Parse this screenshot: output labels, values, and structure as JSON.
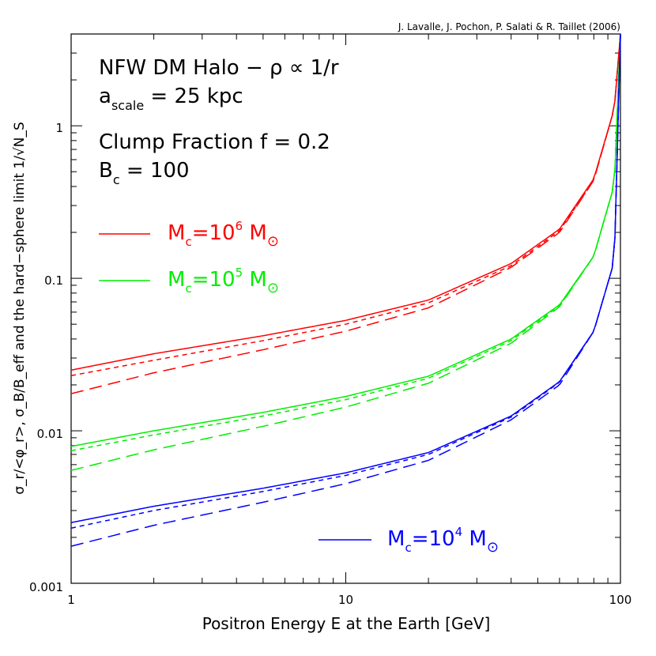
{
  "credit": "J. Lavalle, J. Pochon, P. Salati & R. Taillet (2006)",
  "annotations": {
    "line1": "NFW DM Halo − ρ ∝ 1/r",
    "line2_main": "a",
    "line2_sub": "scale",
    "line2_rest": " = 25 kpc",
    "line3": "Clump Fraction f = 0.2",
    "line4_main": "B",
    "line4_sub": "c",
    "line4_rest": " = 100"
  },
  "xaxis": {
    "label": "Positron Energy E at the Earth  [GeV]",
    "ticks": [
      "1",
      "10",
      "100"
    ]
  },
  "yaxis": {
    "label": "σ_r/<φ_r>, σ_B/B_eff and the hard−sphere limit 1/√N_S",
    "ticks": [
      "0.001",
      "0.01",
      "0.1",
      "1"
    ]
  },
  "chart_data": {
    "type": "line",
    "xscale": "log",
    "yscale": "log",
    "xlim": [
      1,
      100
    ],
    "ylim": [
      0.001,
      4
    ],
    "xlabel": "Positron Energy E at the Earth  [GeV]",
    "ylabel": "σ_r/<φ_r>, σ_B/B_eff and the hard−sphere limit 1/√N_S",
    "x": [
      1,
      2,
      5,
      10,
      20,
      40,
      60,
      80,
      95,
      100
    ],
    "series": [
      {
        "name": "M_c=10^6 M_⊙",
        "group": "1e6",
        "style": "solid",
        "color": "#ff0000",
        "values": [
          0.025,
          0.032,
          0.042,
          0.053,
          0.072,
          0.125,
          0.21,
          0.45,
          1.3,
          4.0
        ]
      },
      {
        "group": "1e6",
        "style": "short-dash",
        "color": "#ff0000",
        "values": [
          0.023,
          0.029,
          0.039,
          0.05,
          0.069,
          0.121,
          0.205,
          0.44,
          1.3,
          4.0
        ]
      },
      {
        "group": "1e6",
        "style": "long-dash",
        "color": "#ff0000",
        "values": [
          0.0175,
          0.024,
          0.034,
          0.045,
          0.064,
          0.118,
          0.2,
          0.44,
          1.3,
          4.0
        ]
      },
      {
        "name": "M_c=10^5 M_⊙",
        "group": "1e5",
        "style": "solid",
        "color": "#00ee00",
        "values": [
          0.0079,
          0.01,
          0.0132,
          0.0168,
          0.0228,
          0.04,
          0.067,
          0.14,
          0.41,
          4.0
        ]
      },
      {
        "group": "1e5",
        "style": "short-dash",
        "color": "#00ee00",
        "values": [
          0.0074,
          0.0094,
          0.0125,
          0.016,
          0.0221,
          0.039,
          0.066,
          0.14,
          0.41,
          4.0
        ]
      },
      {
        "group": "1e5",
        "style": "long-dash",
        "color": "#00ee00",
        "values": [
          0.0055,
          0.0075,
          0.0107,
          0.0143,
          0.0205,
          0.0375,
          0.065,
          0.14,
          0.41,
          4.0
        ]
      },
      {
        "name": "M_c=10^4 M_⊙",
        "group": "1e4",
        "style": "solid",
        "color": "#0000ff",
        "values": [
          0.0025,
          0.0032,
          0.0042,
          0.0053,
          0.0072,
          0.0125,
          0.021,
          0.045,
          0.13,
          4.0
        ]
      },
      {
        "group": "1e4",
        "style": "short-dash",
        "color": "#0000ff",
        "values": [
          0.0023,
          0.003,
          0.004,
          0.0051,
          0.007,
          0.0123,
          0.0208,
          0.045,
          0.13,
          4.0
        ]
      },
      {
        "group": "1e4",
        "style": "long-dash",
        "color": "#0000ff",
        "values": [
          0.00175,
          0.0024,
          0.0034,
          0.0045,
          0.0064,
          0.0118,
          0.02,
          0.045,
          0.13,
          4.0
        ]
      }
    ],
    "legend": [
      {
        "main": "M",
        "sub": "c",
        "mid": "=10",
        "sup": "6",
        "unit": " M",
        "sun": "⊙",
        "color": "#ff0000"
      },
      {
        "main": "M",
        "sub": "c",
        "mid": "=10",
        "sup": "5",
        "unit": " M",
        "sun": "⊙",
        "color": "#00ee00"
      },
      {
        "main": "M",
        "sub": "c",
        "mid": "=10",
        "sup": "4",
        "unit": " M",
        "sun": "⊙",
        "color": "#0000ff"
      }
    ]
  }
}
